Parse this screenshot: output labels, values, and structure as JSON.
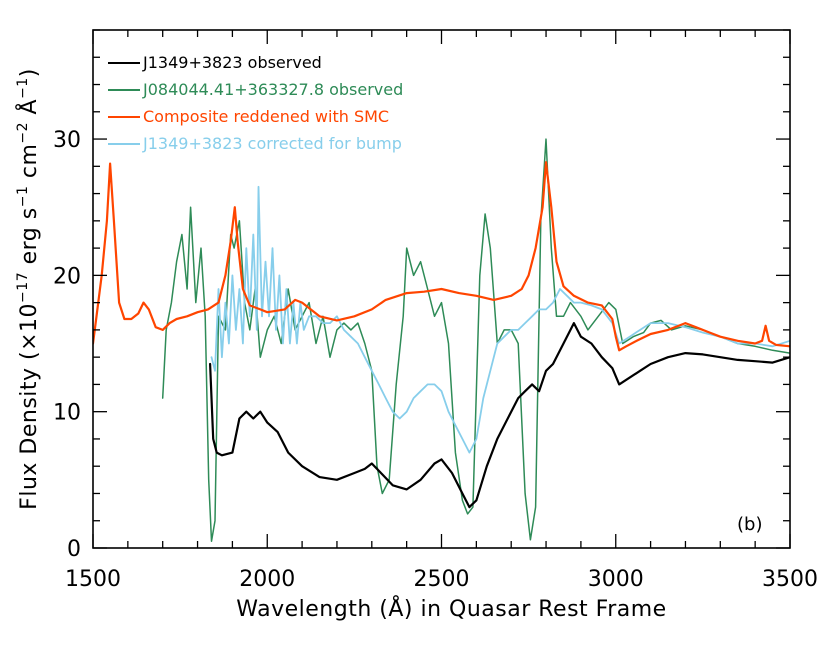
{
  "chart_data": {
    "type": "line",
    "xlabel": "Wavelength (Å) in Quasar Rest Frame",
    "ylabel": "Flux Density (×10^-17 erg s^-1 cm^-2 Å^-1)",
    "ylabel_parts": [
      "Flux Density (×10",
      "−17",
      " erg s",
      "−1",
      " cm",
      "−2",
      " Å",
      "−1",
      ")"
    ],
    "xlim": [
      1500,
      3500
    ],
    "ylim": [
      0,
      38
    ],
    "xticks": [
      1500,
      2000,
      2500,
      3000,
      3500
    ],
    "yticks": [
      0,
      10,
      20,
      30
    ],
    "panel_label": "(b)",
    "grid": false,
    "legend_position": "top-left",
    "series": [
      {
        "name": "J1349+3823 observed",
        "color": "#000000",
        "points": [
          [
            1836,
            13.5
          ],
          [
            1845,
            8
          ],
          [
            1855,
            7
          ],
          [
            1870,
            6.8
          ],
          [
            1900,
            7
          ],
          [
            1920,
            9.5
          ],
          [
            1940,
            10
          ],
          [
            1960,
            9.5
          ],
          [
            1980,
            10
          ],
          [
            2000,
            9.2
          ],
          [
            2030,
            8.5
          ],
          [
            2060,
            7
          ],
          [
            2100,
            6
          ],
          [
            2150,
            5.2
          ],
          [
            2200,
            5
          ],
          [
            2250,
            5.5
          ],
          [
            2280,
            5.8
          ],
          [
            2300,
            6.2
          ],
          [
            2330,
            5.4
          ],
          [
            2360,
            4.6
          ],
          [
            2400,
            4.3
          ],
          [
            2440,
            5
          ],
          [
            2480,
            6.2
          ],
          [
            2500,
            6.5
          ],
          [
            2530,
            5.5
          ],
          [
            2560,
            4
          ],
          [
            2580,
            3
          ],
          [
            2600,
            3.5
          ],
          [
            2630,
            6
          ],
          [
            2660,
            8
          ],
          [
            2700,
            10
          ],
          [
            2720,
            11
          ],
          [
            2740,
            11.5
          ],
          [
            2760,
            12
          ],
          [
            2780,
            11.5
          ],
          [
            2800,
            13
          ],
          [
            2820,
            13.5
          ],
          [
            2850,
            15
          ],
          [
            2880,
            16.5
          ],
          [
            2900,
            15.5
          ],
          [
            2930,
            15
          ],
          [
            2960,
            14
          ],
          [
            2990,
            13.2
          ],
          [
            3010,
            12
          ],
          [
            3040,
            12.5
          ],
          [
            3070,
            13
          ],
          [
            3100,
            13.5
          ],
          [
            3150,
            14
          ],
          [
            3200,
            14.3
          ],
          [
            3250,
            14.2
          ],
          [
            3300,
            14
          ],
          [
            3350,
            13.8
          ],
          [
            3400,
            13.7
          ],
          [
            3450,
            13.6
          ],
          [
            3500,
            14
          ]
        ]
      },
      {
        "name": "J084044.41+363327.8 observed",
        "color": "#2e8b57",
        "points": [
          [
            1700,
            11
          ],
          [
            1710,
            16
          ],
          [
            1725,
            18
          ],
          [
            1740,
            21
          ],
          [
            1755,
            23
          ],
          [
            1770,
            19
          ],
          [
            1780,
            25
          ],
          [
            1795,
            18
          ],
          [
            1810,
            22
          ],
          [
            1822,
            17
          ],
          [
            1832,
            5
          ],
          [
            1840,
            0.5
          ],
          [
            1850,
            2
          ],
          [
            1860,
            17
          ],
          [
            1880,
            16
          ],
          [
            1895,
            23
          ],
          [
            1905,
            22
          ],
          [
            1920,
            24
          ],
          [
            1935,
            18
          ],
          [
            1950,
            16
          ],
          [
            1965,
            19
          ],
          [
            1980,
            14
          ],
          [
            2000,
            16
          ],
          [
            2020,
            17
          ],
          [
            2040,
            15
          ],
          [
            2060,
            19
          ],
          [
            2080,
            16
          ],
          [
            2100,
            17
          ],
          [
            2120,
            18
          ],
          [
            2140,
            15
          ],
          [
            2160,
            17
          ],
          [
            2180,
            14
          ],
          [
            2200,
            16
          ],
          [
            2220,
            16.5
          ],
          [
            2240,
            16
          ],
          [
            2260,
            16.5
          ],
          [
            2280,
            15
          ],
          [
            2300,
            13
          ],
          [
            2315,
            6
          ],
          [
            2330,
            4
          ],
          [
            2350,
            5
          ],
          [
            2370,
            12
          ],
          [
            2390,
            17
          ],
          [
            2400,
            22
          ],
          [
            2420,
            20
          ],
          [
            2440,
            21
          ],
          [
            2460,
            19
          ],
          [
            2480,
            17
          ],
          [
            2500,
            18
          ],
          [
            2520,
            15
          ],
          [
            2540,
            7
          ],
          [
            2560,
            3.5
          ],
          [
            2575,
            2.5
          ],
          [
            2590,
            3
          ],
          [
            2610,
            20
          ],
          [
            2625,
            24.5
          ],
          [
            2640,
            22
          ],
          [
            2660,
            15
          ],
          [
            2680,
            16
          ],
          [
            2700,
            16
          ],
          [
            2720,
            15
          ],
          [
            2740,
            4
          ],
          [
            2755,
            0.6
          ],
          [
            2770,
            3
          ],
          [
            2785,
            24
          ],
          [
            2800,
            30
          ],
          [
            2815,
            22
          ],
          [
            2830,
            17
          ],
          [
            2850,
            17
          ],
          [
            2870,
            18
          ],
          [
            2900,
            17
          ],
          [
            2920,
            16
          ],
          [
            2950,
            17
          ],
          [
            2980,
            18
          ],
          [
            3000,
            17.5
          ],
          [
            3020,
            15
          ],
          [
            3050,
            15.5
          ],
          [
            3080,
            15.8
          ],
          [
            3100,
            16.5
          ],
          [
            3130,
            16.7
          ],
          [
            3160,
            16
          ],
          [
            3200,
            16.3
          ],
          [
            3250,
            16
          ],
          [
            3300,
            15.5
          ],
          [
            3350,
            15
          ],
          [
            3400,
            14.8
          ],
          [
            3450,
            14.5
          ],
          [
            3500,
            14.3
          ]
        ]
      },
      {
        "name": "Composite reddened with SMC",
        "color": "#ff4500",
        "points": [
          [
            1500,
            15
          ],
          [
            1510,
            17
          ],
          [
            1525,
            20
          ],
          [
            1540,
            24
          ],
          [
            1549,
            28.2
          ],
          [
            1560,
            24
          ],
          [
            1575,
            18
          ],
          [
            1590,
            16.8
          ],
          [
            1610,
            16.8
          ],
          [
            1630,
            17.2
          ],
          [
            1645,
            18
          ],
          [
            1660,
            17.5
          ],
          [
            1680,
            16.2
          ],
          [
            1700,
            16
          ],
          [
            1720,
            16.5
          ],
          [
            1740,
            16.8
          ],
          [
            1770,
            17
          ],
          [
            1800,
            17.3
          ],
          [
            1830,
            17.5
          ],
          [
            1860,
            18
          ],
          [
            1880,
            20
          ],
          [
            1895,
            22.5
          ],
          [
            1907,
            25
          ],
          [
            1915,
            22.5
          ],
          [
            1930,
            19
          ],
          [
            1950,
            17.8
          ],
          [
            1980,
            17.5
          ],
          [
            2000,
            17.3
          ],
          [
            2050,
            17.5
          ],
          [
            2080,
            18.2
          ],
          [
            2100,
            18
          ],
          [
            2150,
            17
          ],
          [
            2200,
            16.7
          ],
          [
            2250,
            17
          ],
          [
            2300,
            17.5
          ],
          [
            2340,
            18.2
          ],
          [
            2400,
            18.7
          ],
          [
            2450,
            18.8
          ],
          [
            2500,
            19
          ],
          [
            2550,
            18.7
          ],
          [
            2600,
            18.5
          ],
          [
            2650,
            18.2
          ],
          [
            2700,
            18.5
          ],
          [
            2730,
            19
          ],
          [
            2750,
            20
          ],
          [
            2770,
            22
          ],
          [
            2790,
            25
          ],
          [
            2800,
            28.3
          ],
          [
            2815,
            25
          ],
          [
            2830,
            21
          ],
          [
            2850,
            19.2
          ],
          [
            2880,
            18.5
          ],
          [
            2920,
            18
          ],
          [
            2960,
            17.8
          ],
          [
            2990,
            16.8
          ],
          [
            3000,
            15.5
          ],
          [
            3010,
            14.5
          ],
          [
            3030,
            14.8
          ],
          [
            3060,
            15.2
          ],
          [
            3100,
            15.7
          ],
          [
            3150,
            16
          ],
          [
            3200,
            16.5
          ],
          [
            3230,
            16.2
          ],
          [
            3270,
            15.8
          ],
          [
            3300,
            15.5
          ],
          [
            3350,
            15.2
          ],
          [
            3400,
            15
          ],
          [
            3420,
            15.2
          ],
          [
            3430,
            16.3
          ],
          [
            3440,
            15.2
          ],
          [
            3460,
            14.9
          ],
          [
            3500,
            14.8
          ]
        ]
      },
      {
        "name": "J1349+3823 corrected for bump",
        "color": "#87ceeb",
        "points": [
          [
            1840,
            14
          ],
          [
            1850,
            13
          ],
          [
            1860,
            19
          ],
          [
            1870,
            14
          ],
          [
            1880,
            18
          ],
          [
            1890,
            15
          ],
          [
            1900,
            20
          ],
          [
            1910,
            16
          ],
          [
            1920,
            19
          ],
          [
            1930,
            15
          ],
          [
            1940,
            22
          ],
          [
            1950,
            17
          ],
          [
            1960,
            23
          ],
          [
            1970,
            16
          ],
          [
            1975,
            26.5
          ],
          [
            1985,
            17
          ],
          [
            1995,
            21
          ],
          [
            2005,
            17
          ],
          [
            2015,
            22
          ],
          [
            2025,
            16
          ],
          [
            2035,
            20
          ],
          [
            2045,
            15
          ],
          [
            2055,
            19
          ],
          [
            2065,
            15
          ],
          [
            2075,
            18
          ],
          [
            2085,
            15
          ],
          [
            2095,
            18
          ],
          [
            2105,
            16
          ],
          [
            2120,
            17
          ],
          [
            2140,
            17
          ],
          [
            2160,
            16.5
          ],
          [
            2180,
            16.5
          ],
          [
            2200,
            17
          ],
          [
            2220,
            16
          ],
          [
            2240,
            15.5
          ],
          [
            2260,
            15
          ],
          [
            2280,
            14
          ],
          [
            2300,
            13
          ],
          [
            2320,
            12
          ],
          [
            2340,
            11
          ],
          [
            2360,
            10
          ],
          [
            2380,
            9.5
          ],
          [
            2400,
            10
          ],
          [
            2420,
            11
          ],
          [
            2440,
            11.5
          ],
          [
            2460,
            12
          ],
          [
            2480,
            12
          ],
          [
            2500,
            11.5
          ],
          [
            2520,
            10
          ],
          [
            2540,
            9
          ],
          [
            2560,
            8
          ],
          [
            2580,
            7
          ],
          [
            2600,
            8
          ],
          [
            2620,
            11
          ],
          [
            2640,
            13
          ],
          [
            2660,
            15
          ],
          [
            2680,
            15.5
          ],
          [
            2700,
            16
          ],
          [
            2720,
            16
          ],
          [
            2740,
            16.5
          ],
          [
            2760,
            17
          ],
          [
            2780,
            17.5
          ],
          [
            2800,
            17.5
          ],
          [
            2820,
            18
          ],
          [
            2840,
            19
          ],
          [
            2860,
            18.5
          ],
          [
            2880,
            18
          ],
          [
            2900,
            18
          ],
          [
            2930,
            17.8
          ],
          [
            2960,
            17.5
          ],
          [
            2990,
            16.5
          ],
          [
            3010,
            15
          ],
          [
            3040,
            15.5
          ],
          [
            3070,
            16
          ],
          [
            3100,
            16.5
          ],
          [
            3150,
            16.5
          ],
          [
            3200,
            16.2
          ],
          [
            3250,
            15.8
          ],
          [
            3300,
            15.5
          ],
          [
            3350,
            15
          ],
          [
            3400,
            15
          ],
          [
            3450,
            14.8
          ],
          [
            3500,
            15.2
          ]
        ]
      }
    ]
  }
}
